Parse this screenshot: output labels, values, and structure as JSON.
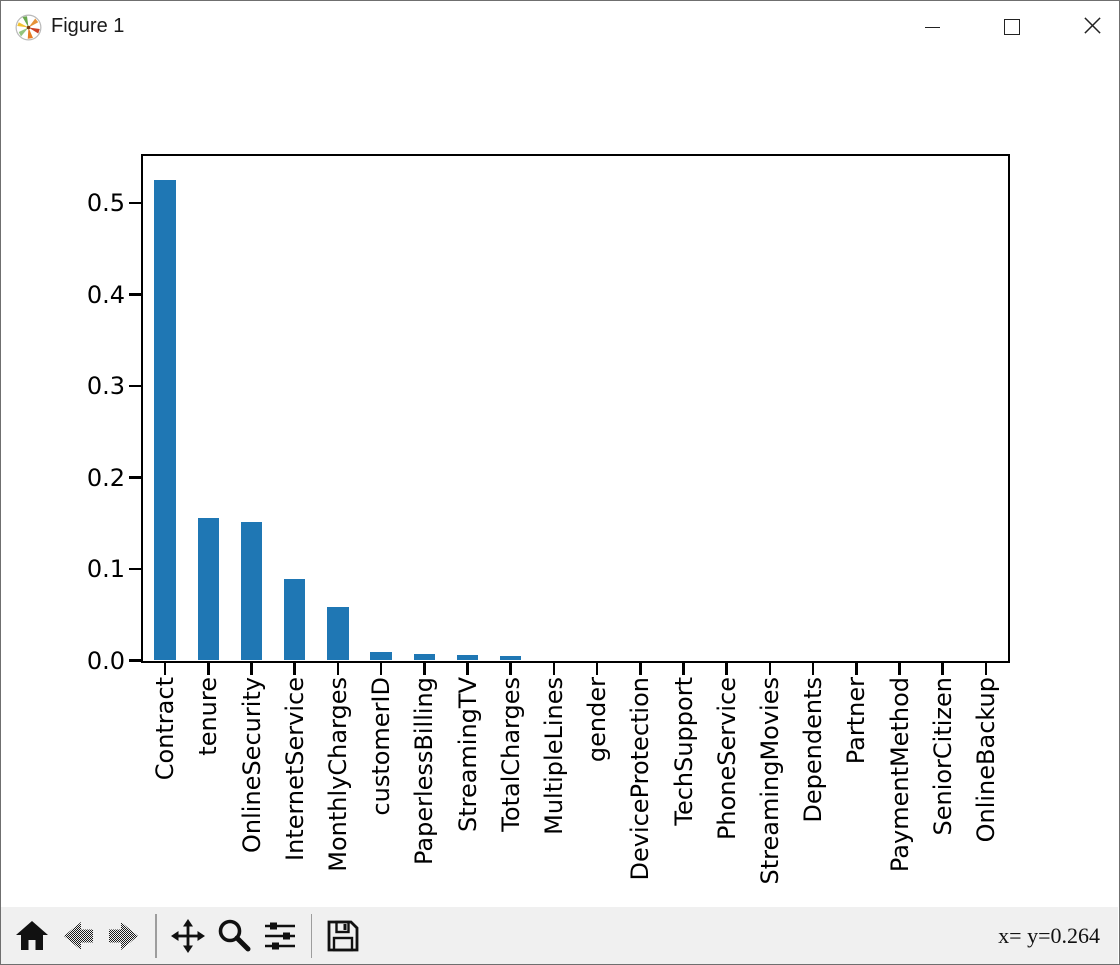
{
  "window": {
    "title": "Figure 1",
    "icon": "matplotlib-logo-icon",
    "controls": [
      {
        "name": "minimize"
      },
      {
        "name": "maximize"
      },
      {
        "name": "close"
      }
    ]
  },
  "toolbar": {
    "buttons": [
      {
        "name": "home",
        "icon": "home-icon",
        "enabled": true
      },
      {
        "name": "back",
        "icon": "back-arrow-icon",
        "enabled": false
      },
      {
        "name": "forward",
        "icon": "forward-arrow-icon",
        "enabled": false
      },
      {
        "name": "pan",
        "icon": "pan-arrows-icon",
        "enabled": true
      },
      {
        "name": "zoom",
        "icon": "zoom-magnifier-icon",
        "enabled": true
      },
      {
        "name": "configure-subplots",
        "icon": "sliders-icon",
        "enabled": true
      },
      {
        "name": "save",
        "icon": "save-floppy-icon",
        "enabled": true
      }
    ],
    "status_text": "x= y=0.264"
  },
  "chart_data": {
    "type": "bar",
    "title": "",
    "xlabel": "",
    "ylabel": "",
    "categories": [
      "Contract",
      "tenure",
      "OnlineSecurity",
      "InternetService",
      "MonthlyCharges",
      "customerID",
      "PaperlessBilling",
      "StreamingTV",
      "TotalCharges",
      "MultipleLines",
      "gender",
      "DeviceProtection",
      "TechSupport",
      "PhoneService",
      "StreamingMovies",
      "Dependents",
      "Partner",
      "PaymentMethod",
      "SeniorCitizen",
      "OnlineBackup"
    ],
    "values": [
      0.525,
      0.156,
      0.151,
      0.089,
      0.059,
      0.009,
      0.007,
      0.006,
      0.005,
      0.0,
      0.0,
      0.0,
      0.0,
      0.0,
      0.0,
      0.0,
      0.0,
      0.0,
      0.0,
      0.0
    ],
    "bar_color": "#1f77b4",
    "bar_relative_width": 0.5,
    "ylim": [
      0,
      0.551
    ],
    "yticks": [
      0.0,
      0.1,
      0.2,
      0.3,
      0.4,
      0.5
    ],
    "x_tick_rotation": 90,
    "grid": false,
    "legend": null
  }
}
